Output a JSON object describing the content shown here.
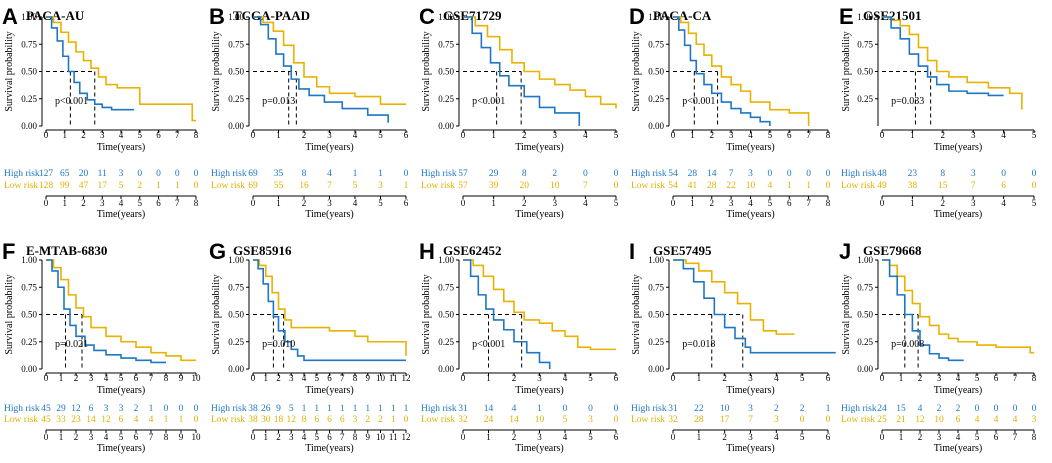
{
  "colors": {
    "high": "#1f77c4",
    "low": "#e8b200"
  },
  "labels": {
    "ylabel": "Survival probability",
    "xlabel": "Time(years)",
    "high": "High risk",
    "low": "Low risk"
  },
  "chart_data": [
    {
      "letter": "A",
      "title": "PACA-AU",
      "pval": "p<0.001",
      "xmax": 8,
      "xticks": [
        0,
        1,
        2,
        3,
        4,
        5,
        6,
        7,
        8
      ],
      "ylim": [
        0,
        1
      ],
      "yticks": [
        0,
        0.25,
        0.5,
        0.75,
        1
      ],
      "median_high": 1.3,
      "median_low": 2.6,
      "high_risk": [
        "127",
        "65",
        "20",
        "11",
        "3",
        "0",
        "0",
        "0",
        "0"
      ],
      "low_risk": [
        "128",
        "99",
        "47",
        "17",
        "5",
        "2",
        "1",
        "1",
        "0"
      ],
      "series": [
        {
          "name": "High risk",
          "x": [
            0,
            0.3,
            0.6,
            0.9,
            1.2,
            1.5,
            1.8,
            2.2,
            2.6,
            3,
            3.5,
            4,
            4.7
          ],
          "y": [
            1,
            0.9,
            0.78,
            0.64,
            0.5,
            0.4,
            0.3,
            0.24,
            0.2,
            0.17,
            0.15,
            0.15,
            0.15
          ]
        },
        {
          "name": "Low risk",
          "x": [
            0,
            0.4,
            0.8,
            1.2,
            1.6,
            2,
            2.4,
            2.8,
            3.2,
            3.8,
            4.5,
            5,
            6,
            7,
            7.8,
            8
          ],
          "y": [
            1,
            0.95,
            0.86,
            0.77,
            0.68,
            0.6,
            0.53,
            0.45,
            0.38,
            0.35,
            0.35,
            0.2,
            0.2,
            0.2,
            0.05,
            0.05
          ]
        }
      ]
    },
    {
      "letter": "B",
      "title": "TCGA-PAAD",
      "pval": "p=0.013",
      "xmax": 6,
      "xticks": [
        0,
        1,
        2,
        3,
        4,
        5,
        6
      ],
      "ylim": [
        0,
        1
      ],
      "yticks": [
        0,
        0.25,
        0.5,
        0.75,
        1
      ],
      "median_high": 1.4,
      "median_low": 1.7,
      "high_risk": [
        "69",
        "35",
        "8",
        "4",
        "1",
        "1",
        "0"
      ],
      "low_risk": [
        "69",
        "55",
        "16",
        "7",
        "5",
        "3",
        "1"
      ],
      "series": [
        {
          "name": "High risk",
          "x": [
            0,
            0.3,
            0.6,
            0.9,
            1.2,
            1.5,
            1.8,
            2.2,
            2.8,
            3.5,
            4.5,
            5.3
          ],
          "y": [
            1,
            0.93,
            0.8,
            0.66,
            0.55,
            0.43,
            0.34,
            0.28,
            0.22,
            0.16,
            0.1,
            0.03
          ]
        },
        {
          "name": "Low risk",
          "x": [
            0,
            0.4,
            0.8,
            1.2,
            1.6,
            2,
            2.5,
            3,
            4,
            5,
            5.5,
            6
          ],
          "y": [
            1,
            0.95,
            0.87,
            0.74,
            0.58,
            0.45,
            0.36,
            0.3,
            0.27,
            0.2,
            0.2,
            0.2
          ]
        }
      ]
    },
    {
      "letter": "C",
      "title": "GSE71729",
      "pval": "p<0.001",
      "xmax": 5,
      "xticks": [
        0,
        1,
        2,
        3,
        4,
        5
      ],
      "ylim": [
        0,
        1
      ],
      "yticks": [
        0,
        0.25,
        0.5,
        0.75,
        1
      ],
      "median_high": 1.1,
      "median_low": 1.9,
      "high_risk": [
        "57",
        "29",
        "8",
        "2",
        "0",
        "0"
      ],
      "low_risk": [
        "57",
        "39",
        "20",
        "10",
        "7",
        "0"
      ],
      "series": [
        {
          "name": "High risk",
          "x": [
            0,
            0.3,
            0.6,
            0.9,
            1.2,
            1.5,
            2,
            2.5,
            3,
            3.7,
            3.8
          ],
          "y": [
            1,
            0.85,
            0.72,
            0.58,
            0.46,
            0.37,
            0.27,
            0.17,
            0.12,
            0.12,
            0
          ]
        },
        {
          "name": "Low risk",
          "x": [
            0,
            0.4,
            0.8,
            1.2,
            1.6,
            2,
            2.5,
            3,
            3.5,
            4,
            4.5,
            5
          ],
          "y": [
            1,
            0.92,
            0.82,
            0.7,
            0.58,
            0.5,
            0.43,
            0.38,
            0.33,
            0.27,
            0.2,
            0.16
          ]
        }
      ]
    },
    {
      "letter": "D",
      "title": "PACA-CA",
      "pval": "p<0.001",
      "xmax": 8,
      "xticks": [
        0,
        1,
        2,
        3,
        4,
        5,
        6,
        7,
        8
      ],
      "ylim": [
        0,
        1
      ],
      "yticks": [
        0,
        0.25,
        0.5,
        0.75,
        1
      ],
      "median_high": 1.1,
      "median_low": 2.3,
      "high_risk": [
        "54",
        "28",
        "14",
        "7",
        "3",
        "0",
        "0",
        "0",
        "0"
      ],
      "low_risk": [
        "54",
        "41",
        "28",
        "22",
        "10",
        "4",
        "1",
        "1",
        "0"
      ],
      "series": [
        {
          "name": "High risk",
          "x": [
            0,
            0.3,
            0.6,
            0.9,
            1.2,
            1.6,
            2,
            2.5,
            3,
            3.5,
            4,
            4.5,
            5
          ],
          "y": [
            1,
            0.88,
            0.74,
            0.6,
            0.48,
            0.38,
            0.3,
            0.22,
            0.16,
            0.12,
            0.08,
            0.04,
            0
          ]
        },
        {
          "name": "Low risk",
          "x": [
            0,
            0.4,
            0.8,
            1.2,
            1.6,
            2,
            2.5,
            3,
            3.5,
            4,
            5,
            6,
            7
          ],
          "y": [
            1,
            0.95,
            0.85,
            0.75,
            0.65,
            0.55,
            0.45,
            0.38,
            0.32,
            0.22,
            0.15,
            0.12,
            0
          ]
        }
      ]
    },
    {
      "letter": "E",
      "title": "GSE21501",
      "pval": "p=0.033",
      "xmax": 5,
      "xticks": [
        0,
        1,
        2,
        3,
        4,
        5
      ],
      "ylim": [
        0,
        1
      ],
      "yticks": [
        0.25,
        0.5,
        0.75,
        1
      ],
      "median_high": 1.1,
      "median_low": 1.6,
      "high_risk": [
        "48",
        "23",
        "8",
        "3",
        "0",
        "0"
      ],
      "low_risk": [
        "49",
        "38",
        "15",
        "7",
        "6",
        "0"
      ],
      "series": [
        {
          "name": "High risk",
          "x": [
            0,
            0.3,
            0.6,
            0.9,
            1.2,
            1.5,
            1.8,
            2.2,
            2.8,
            3.5,
            4
          ],
          "y": [
            1,
            0.9,
            0.8,
            0.66,
            0.55,
            0.45,
            0.38,
            0.32,
            0.3,
            0.28,
            0.28
          ]
        },
        {
          "name": "Low risk",
          "x": [
            0,
            0.3,
            0.6,
            0.9,
            1.2,
            1.5,
            1.8,
            2.2,
            2.8,
            3.5,
            4.2,
            4.6
          ],
          "y": [
            1,
            0.97,
            0.92,
            0.84,
            0.72,
            0.6,
            0.5,
            0.45,
            0.4,
            0.35,
            0.3,
            0.15
          ]
        }
      ]
    },
    {
      "letter": "F",
      "title": "E-MTAB-6830",
      "pval": "p=0.021",
      "xmax": 10,
      "xticks": [
        0,
        1,
        2,
        3,
        4,
        5,
        6,
        7,
        8,
        9,
        10
      ],
      "ylim": [
        0,
        1
      ],
      "yticks": [
        0,
        0.25,
        0.5,
        0.75,
        1
      ],
      "median_high": 1.3,
      "median_low": 2.4,
      "high_risk": [
        "45",
        "29",
        "12",
        "6",
        "3",
        "3",
        "2",
        "1",
        "0",
        "0",
        "0"
      ],
      "low_risk": [
        "45",
        "33",
        "23",
        "14",
        "12",
        "6",
        "4",
        "4",
        "1",
        "1",
        "0"
      ],
      "series": [
        {
          "name": "High risk",
          "x": [
            0,
            0.4,
            0.8,
            1.2,
            1.6,
            2,
            2.6,
            3.2,
            4,
            5,
            6,
            7,
            8
          ],
          "y": [
            1,
            0.9,
            0.75,
            0.55,
            0.4,
            0.3,
            0.22,
            0.17,
            0.13,
            0.1,
            0.08,
            0.06,
            0.06
          ]
        },
        {
          "name": "Low risk",
          "x": [
            0,
            0.5,
            1,
            1.5,
            2,
            2.5,
            3,
            4,
            5,
            6,
            7,
            8,
            9,
            10
          ],
          "y": [
            1,
            0.93,
            0.82,
            0.68,
            0.56,
            0.48,
            0.38,
            0.3,
            0.25,
            0.2,
            0.15,
            0.12,
            0.08,
            0.08
          ]
        }
      ]
    },
    {
      "letter": "G",
      "title": "GSE85916",
      "pval": "p=0.010",
      "xmax": 12,
      "xticks": [
        0,
        1,
        2,
        3,
        4,
        5,
        6,
        7,
        8,
        9,
        10,
        11,
        12
      ],
      "ylim": [
        0,
        1
      ],
      "yticks": [
        0,
        0.25,
        0.5,
        0.75,
        1
      ],
      "median_high": 1.6,
      "median_low": 2.4,
      "high_risk": [
        "38",
        "26",
        "9",
        "5",
        "1",
        "1",
        "1",
        "1",
        "1",
        "1",
        "1",
        "1",
        "1"
      ],
      "low_risk": [
        "38",
        "30",
        "18",
        "12",
        "8",
        "6",
        "6",
        "6",
        "3",
        "2",
        "2",
        "1",
        "0"
      ],
      "series": [
        {
          "name": "High risk",
          "x": [
            0,
            0.4,
            0.8,
            1.2,
            1.6,
            2,
            2.5,
            3,
            3.5,
            4,
            12
          ],
          "y": [
            1,
            0.92,
            0.78,
            0.62,
            0.48,
            0.35,
            0.25,
            0.18,
            0.12,
            0.08,
            0.08
          ]
        },
        {
          "name": "Low risk",
          "x": [
            0,
            0.5,
            1,
            1.5,
            2,
            2.5,
            3,
            4,
            6,
            8,
            9,
            10,
            11,
            12
          ],
          "y": [
            1,
            0.95,
            0.85,
            0.7,
            0.55,
            0.45,
            0.38,
            0.38,
            0.35,
            0.3,
            0.25,
            0.25,
            0.25,
            0.12
          ]
        }
      ]
    },
    {
      "letter": "H",
      "title": "GSE62452",
      "pval": "p<0.001",
      "xmax": 6,
      "xticks": [
        0,
        1,
        2,
        3,
        4,
        5,
        6
      ],
      "ylim": [
        0,
        1
      ],
      "yticks": [
        0,
        0.25,
        0.5,
        0.75,
        1
      ],
      "median_high": 1.0,
      "median_low": 2.3,
      "high_risk": [
        "31",
        "14",
        "4",
        "1",
        "0",
        "0",
        "0"
      ],
      "low_risk": [
        "32",
        "24",
        "14",
        "10",
        "5",
        "3",
        "0"
      ],
      "series": [
        {
          "name": "High risk",
          "x": [
            0,
            0.3,
            0.6,
            0.9,
            1.2,
            1.6,
            2,
            2.5,
            3,
            3.4
          ],
          "y": [
            1,
            0.85,
            0.68,
            0.55,
            0.45,
            0.36,
            0.25,
            0.15,
            0.06,
            0
          ]
        },
        {
          "name": "Low risk",
          "x": [
            0,
            0.4,
            0.8,
            1.2,
            1.6,
            2,
            2.4,
            3,
            3.5,
            4,
            4.5,
            5,
            6
          ],
          "y": [
            1,
            0.95,
            0.85,
            0.73,
            0.62,
            0.52,
            0.45,
            0.42,
            0.35,
            0.3,
            0.2,
            0.18,
            0.18
          ]
        }
      ]
    },
    {
      "letter": "I",
      "title": "GSE57495",
      "pval": "p=0.018",
      "xmax": 6,
      "xticks": [
        0,
        1,
        2,
        3,
        4,
        5,
        6
      ],
      "ylim": [
        0,
        1
      ],
      "yticks": [
        0,
        0.25,
        0.5,
        0.75,
        1
      ],
      "median_high": 1.5,
      "median_low": 2.7,
      "high_risk": [
        "31",
        "22",
        "10",
        "3",
        "2",
        "2",
        "1"
      ],
      "low_risk": [
        "32",
        "28",
        "17",
        "7",
        "3",
        "0",
        "0"
      ],
      "series": [
        {
          "name": "High risk",
          "x": [
            0,
            0.4,
            0.8,
            1.2,
            1.6,
            2,
            2.4,
            2.8,
            3,
            6.3
          ],
          "y": [
            1,
            0.92,
            0.8,
            0.65,
            0.5,
            0.38,
            0.28,
            0.2,
            0.15,
            0.15
          ]
        },
        {
          "name": "Low risk",
          "x": [
            0,
            0.5,
            1,
            1.5,
            2,
            2.5,
            3,
            3.5,
            4,
            4.7
          ],
          "y": [
            1,
            0.97,
            0.9,
            0.8,
            0.7,
            0.6,
            0.45,
            0.35,
            0.32,
            0.32
          ]
        }
      ]
    },
    {
      "letter": "J",
      "title": "GSE79668",
      "pval": "p=0.008",
      "xmax": 8,
      "xticks": [
        0,
        1,
        2,
        3,
        4,
        5,
        6,
        7,
        8
      ],
      "ylim": [
        0,
        1
      ],
      "yticks": [
        0,
        0.25,
        0.5,
        0.75,
        1
      ],
      "median_high": 1.2,
      "median_low": 1.9,
      "high_risk": [
        "24",
        "15",
        "4",
        "2",
        "2",
        "0",
        "0",
        "0",
        "0"
      ],
      "low_risk": [
        "25",
        "21",
        "12",
        "10",
        "6",
        "4",
        "4",
        "4",
        "3"
      ],
      "series": [
        {
          "name": "High risk",
          "x": [
            0,
            0.4,
            0.8,
            1.2,
            1.6,
            2,
            2.5,
            3,
            3.5,
            4.3
          ],
          "y": [
            1,
            0.85,
            0.68,
            0.5,
            0.35,
            0.22,
            0.14,
            0.1,
            0.08,
            0.08
          ]
        },
        {
          "name": "Low risk",
          "x": [
            0,
            0.4,
            0.8,
            1.2,
            1.6,
            2,
            2.5,
            3,
            3.5,
            4,
            5,
            6,
            7,
            7.8,
            8
          ],
          "y": [
            1,
            0.95,
            0.85,
            0.72,
            0.6,
            0.48,
            0.4,
            0.32,
            0.28,
            0.25,
            0.22,
            0.2,
            0.2,
            0.15,
            0.15
          ]
        }
      ]
    }
  ]
}
